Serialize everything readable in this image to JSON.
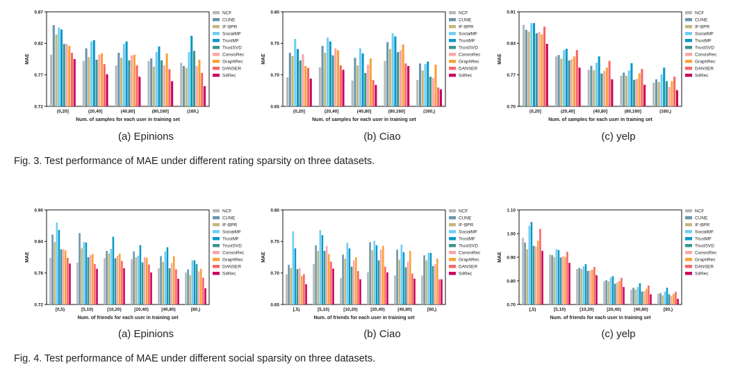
{
  "series_colors": {
    "NCF": "#b3b8bd",
    "CUNE": "#6a95a8",
    "IF-BPR": "#c4b67a",
    "SocialMF": "#6fcdf2",
    "TrustMF": "#0a97c7",
    "TrustSVD": "#3a9490",
    "ConsisRec": "#f9a5a5",
    "GraphRec": "#f9a03a",
    "DANSER": "#f76565",
    "S4Rec": "#c9005b"
  },
  "fig3": {
    "caption": "Fig. 3. Test performance of MAE under different rating sparsity on three datasets."
  },
  "fig4": {
    "caption": "Fig. 4. Test performance of MAE under different social sparsity on three datasets."
  },
  "chart_data": [
    {
      "id": "fig3a",
      "type": "bar",
      "subcaption": "(a) Epinions",
      "title": "",
      "xlabel": "Num. of samples for each user in training set",
      "ylabel": "MAE",
      "ylim": [
        0.72,
        0.87
      ],
      "yticks": [
        "0.72",
        "0.77",
        "0.82",
        "0.87"
      ],
      "grid": false,
      "legend": "right",
      "categories": [
        "(0,20]",
        "(20,40]",
        "(40,80]",
        "(80,160]",
        "(160,)"
      ],
      "series": [
        {
          "name": "NCF",
          "values": [
            0.802,
            0.792,
            0.785,
            0.792,
            0.789
          ]
        },
        {
          "name": "CUNE",
          "values": [
            0.849,
            0.812,
            0.805,
            0.796,
            0.784
          ]
        },
        {
          "name": "IF-BPR",
          "values": [
            0.834,
            0.798,
            0.797,
            0.783,
            0.781
          ]
        },
        {
          "name": "SocialMF",
          "values": [
            0.845,
            0.823,
            0.819,
            0.806,
            0.806
          ]
        },
        {
          "name": "TrustMF",
          "values": [
            0.842,
            0.825,
            0.823,
            0.815,
            0.832
          ]
        },
        {
          "name": "TrustSVD",
          "values": [
            0.819,
            0.794,
            0.793,
            0.793,
            0.808
          ]
        },
        {
          "name": "ConsisRec",
          "values": [
            0.819,
            0.802,
            0.801,
            0.785,
            0.784
          ]
        },
        {
          "name": "GraphRec",
          "values": [
            0.816,
            0.804,
            0.802,
            0.804,
            0.794
          ]
        },
        {
          "name": "DANSER",
          "values": [
            0.805,
            0.787,
            0.785,
            0.779,
            0.773
          ]
        },
        {
          "name": "S4Rec",
          "values": [
            0.795,
            0.771,
            0.767,
            0.76,
            0.752
          ]
        }
      ]
    },
    {
      "id": "fig3b",
      "type": "bar",
      "subcaption": "(b) Ciao",
      "title": "",
      "xlabel": "Num. of samples for each user in training set",
      "ylabel": "MAE",
      "ylim": [
        0.65,
        0.8
      ],
      "yticks": [
        "0.65",
        "0.70",
        "0.75",
        "0.80"
      ],
      "grid": false,
      "legend": "right",
      "categories": [
        "(0,20]",
        "(20,40]",
        "(40,80]",
        "(80,160]",
        "(160,)"
      ],
      "series": [
        {
          "name": "NCF",
          "values": [
            0.696,
            0.712,
            0.691,
            0.722,
            0.692
          ]
        },
        {
          "name": "CUNE",
          "values": [
            0.735,
            0.746,
            0.727,
            0.752,
            0.718
          ]
        },
        {
          "name": "IF-BPR",
          "values": [
            0.73,
            0.735,
            0.715,
            0.741,
            0.707
          ]
        },
        {
          "name": "SocialMF",
          "values": [
            0.757,
            0.759,
            0.742,
            0.766,
            0.717
          ]
        },
        {
          "name": "TrustMF",
          "values": [
            0.741,
            0.753,
            0.734,
            0.761,
            0.721
          ]
        },
        {
          "name": "TrustSVD",
          "values": [
            0.723,
            0.731,
            0.703,
            0.736,
            0.697
          ]
        },
        {
          "name": "ConsisRec",
          "values": [
            0.733,
            0.742,
            0.716,
            0.739,
            0.695
          ]
        },
        {
          "name": "GraphRec",
          "values": [
            0.714,
            0.739,
            0.726,
            0.748,
            0.716
          ]
        },
        {
          "name": "DANSER",
          "values": [
            0.711,
            0.715,
            0.692,
            0.718,
            0.68
          ]
        },
        {
          "name": "S4Rec",
          "values": [
            0.694,
            0.708,
            0.684,
            0.714,
            0.677
          ]
        }
      ]
    },
    {
      "id": "fig3c",
      "type": "bar",
      "subcaption": "(c) yelp",
      "title": "",
      "xlabel": "Num. of samples for each user in training set",
      "ylabel": "MAE",
      "ylim": [
        0.7,
        0.91
      ],
      "yticks": [
        "0.70",
        "0.77",
        "0.84",
        "0.91"
      ],
      "grid": false,
      "legend": "right",
      "categories": [
        "(0,20]",
        "(20,40]",
        "(40,80]",
        "(80,160]",
        "(160,)"
      ],
      "series": [
        {
          "name": "NCF",
          "values": [
            0.881,
            0.811,
            0.781,
            0.768,
            0.753
          ]
        },
        {
          "name": "CUNE",
          "values": [
            0.87,
            0.814,
            0.79,
            0.775,
            0.76
          ]
        },
        {
          "name": "IF-BPR",
          "values": [
            0.866,
            0.806,
            0.78,
            0.768,
            0.754
          ]
        },
        {
          "name": "SocialMF",
          "values": [
            0.885,
            0.825,
            0.797,
            0.78,
            0.771
          ]
        },
        {
          "name": "TrustMF",
          "values": [
            0.885,
            0.828,
            0.811,
            0.796,
            0.786
          ]
        },
        {
          "name": "TrustSVD",
          "values": [
            0.862,
            0.802,
            0.773,
            0.759,
            0.756
          ]
        },
        {
          "name": "ConsisRec",
          "values": [
            0.865,
            0.805,
            0.779,
            0.761,
            0.743
          ]
        },
        {
          "name": "GraphRec",
          "values": [
            0.86,
            0.811,
            0.786,
            0.773,
            0.756
          ]
        },
        {
          "name": "DANSER",
          "values": [
            0.877,
            0.825,
            0.801,
            0.783,
            0.766
          ]
        },
        {
          "name": "S4Rec",
          "values": [
            0.839,
            0.786,
            0.76,
            0.748,
            0.736
          ]
        }
      ]
    },
    {
      "id": "fig4a",
      "type": "bar",
      "subcaption": "(a) Epinions",
      "title": "",
      "xlabel": "Num. of friends for each user in training set",
      "ylabel": "MAE",
      "ylim": [
        0.72,
        0.9
      ],
      "yticks": [
        "0.72",
        "0.78",
        "0.84",
        "0.90"
      ],
      "grid": false,
      "legend": "right",
      "categories": [
        "[0,5)",
        "[5,10)",
        "[10,20)",
        "[20,40)",
        "[40,80)",
        "[80,)"
      ],
      "series": [
        {
          "name": "NCF",
          "values": [
            0.809,
            0.8,
            0.808,
            0.806,
            0.789,
            0.781
          ]
        },
        {
          "name": "CUNE",
          "values": [
            0.853,
            0.856,
            0.822,
            0.821,
            0.812,
            0.787
          ]
        },
        {
          "name": "IF-BPR",
          "values": [
            0.839,
            0.827,
            0.817,
            0.81,
            0.801,
            0.776
          ]
        },
        {
          "name": "SocialMF",
          "values": [
            0.876,
            0.839,
            0.826,
            0.813,
            0.821,
            0.804
          ]
        },
        {
          "name": "TrustMF",
          "values": [
            0.862,
            0.838,
            0.849,
            0.833,
            0.829,
            0.804
          ]
        },
        {
          "name": "TrustSVD",
          "values": [
            0.825,
            0.81,
            0.808,
            0.8,
            0.789,
            0.797
          ]
        },
        {
          "name": "ConsisRec",
          "values": [
            0.825,
            0.814,
            0.813,
            0.81,
            0.799,
            0.783
          ]
        },
        {
          "name": "GraphRec",
          "values": [
            0.823,
            0.816,
            0.817,
            0.809,
            0.812,
            0.788
          ]
        },
        {
          "name": "DANSER",
          "values": [
            0.809,
            0.797,
            0.803,
            0.796,
            0.787,
            0.771
          ]
        },
        {
          "name": "S4Rec",
          "values": [
            0.798,
            0.788,
            0.789,
            0.781,
            0.769,
            0.751
          ]
        }
      ]
    },
    {
      "id": "fig4b",
      "type": "bar",
      "subcaption": "(b) Ciao",
      "title": "",
      "xlabel": "Num. of friends for each user in training set",
      "ylabel": "MAE",
      "ylim": [
        0.65,
        0.8
      ],
      "yticks": [
        "0.65",
        "0.70",
        "0.75",
        "0.80"
      ],
      "grid": false,
      "legend": "right",
      "categories": [
        "[,5)",
        "[5,10)",
        "[10,20)",
        "[20,40)",
        "[40,80)",
        "[80,)"
      ],
      "series": [
        {
          "name": "NCF",
          "values": [
            0.698,
            0.714,
            0.692,
            0.701,
            0.696,
            0.696
          ]
        },
        {
          "name": "CUNE",
          "values": [
            0.713,
            0.744,
            0.729,
            0.749,
            0.737,
            0.728
          ]
        },
        {
          "name": "IF-BPR",
          "values": [
            0.708,
            0.735,
            0.723,
            0.736,
            0.721,
            0.72
          ]
        },
        {
          "name": "SocialMF",
          "values": [
            0.766,
            0.768,
            0.748,
            0.751,
            0.745,
            0.732
          ]
        },
        {
          "name": "TrustMF",
          "values": [
            0.739,
            0.76,
            0.739,
            0.744,
            0.733,
            0.732
          ]
        },
        {
          "name": "TrustSVD",
          "values": [
            0.706,
            0.735,
            0.71,
            0.72,
            0.709,
            0.711
          ]
        },
        {
          "name": "ConsisRec",
          "values": [
            0.708,
            0.743,
            0.72,
            0.737,
            0.718,
            0.714
          ]
        },
        {
          "name": "GraphRec",
          "values": [
            0.695,
            0.73,
            0.725,
            0.743,
            0.735,
            0.723
          ]
        },
        {
          "name": "DANSER",
          "values": [
            0.698,
            0.718,
            0.703,
            0.71,
            0.699,
            0.69
          ]
        },
        {
          "name": "S4Rec",
          "values": [
            0.682,
            0.707,
            0.69,
            0.701,
            0.691,
            0.69
          ]
        }
      ]
    },
    {
      "id": "fig4c",
      "type": "bar",
      "subcaption": "(c) yelp",
      "title": "",
      "xlabel": "Num. of friends for each user in training set",
      "ylabel": "MAE",
      "ylim": [
        0.7,
        1.1
      ],
      "yticks": [
        "0.70",
        "0.80",
        "0.90",
        "1.00",
        "1.10"
      ],
      "grid": false,
      "legend": "right",
      "categories": [
        "[,5)",
        "[5,10)",
        "[10,20)",
        "[20,40)",
        "[40,80)",
        "[80,)"
      ],
      "series": [
        {
          "name": "NCF",
          "values": [
            0.982,
            0.911,
            0.85,
            0.799,
            0.763,
            0.745
          ]
        },
        {
          "name": "CUNE",
          "values": [
            0.962,
            0.909,
            0.855,
            0.803,
            0.771,
            0.748
          ]
        },
        {
          "name": "IF-BPR",
          "values": [
            0.934,
            0.901,
            0.85,
            0.798,
            0.763,
            0.739
          ]
        },
        {
          "name": "SocialMF",
          "values": [
            1.033,
            0.935,
            0.862,
            0.814,
            0.774,
            0.754
          ]
        },
        {
          "name": "TrustMF",
          "values": [
            1.049,
            0.93,
            0.871,
            0.82,
            0.79,
            0.771
          ]
        },
        {
          "name": "TrustSVD",
          "values": [
            0.948,
            0.899,
            0.842,
            0.788,
            0.755,
            0.743
          ]
        },
        {
          "name": "ConsisRec",
          "values": [
            0.945,
            0.904,
            0.844,
            0.793,
            0.757,
            0.735
          ]
        },
        {
          "name": "GraphRec",
          "values": [
            0.97,
            0.901,
            0.847,
            0.799,
            0.767,
            0.745
          ]
        },
        {
          "name": "DANSER",
          "values": [
            1.02,
            0.923,
            0.859,
            0.813,
            0.78,
            0.754
          ]
        },
        {
          "name": "S4Rec",
          "values": [
            0.927,
            0.876,
            0.824,
            0.774,
            0.743,
            0.724
          ]
        }
      ]
    }
  ]
}
